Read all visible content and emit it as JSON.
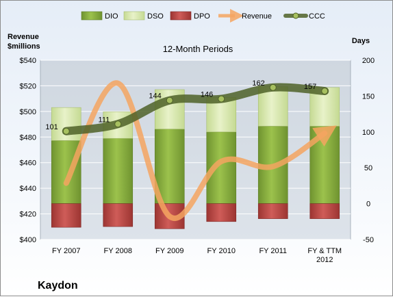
{
  "chart_data": {
    "type": "bar",
    "title": "12-Month Periods",
    "company": "Kaydon",
    "left_axis_title": "Revenue\n$millions",
    "right_axis_title": "Days",
    "categories": [
      "FY 2007",
      "FY 2008",
      "FY 2009",
      "FY 2010",
      "FY 2011",
      "FY & TTM\n2012"
    ],
    "left_axis": {
      "min": 400,
      "max": 540,
      "step": 20,
      "prefix": "$"
    },
    "right_axis": {
      "min": -50,
      "max": 200,
      "step": 50
    },
    "grid": true,
    "legend_position": "top",
    "series": [
      {
        "name": "DIO",
        "axis": "right",
        "kind": "stacked-bar",
        "color": "#8db53f",
        "values": [
          88,
          91,
          104,
          100,
          108,
          108
        ]
      },
      {
        "name": "DSO",
        "axis": "right",
        "kind": "stacked-bar",
        "color": "#dbe9b5",
        "values": [
          46,
          37,
          55,
          48,
          55,
          54
        ]
      },
      {
        "name": "DPO",
        "axis": "right",
        "kind": "negative-bar",
        "color": "#c0504d",
        "values": [
          -33,
          -32,
          -35,
          -25,
          -21,
          -21
        ]
      },
      {
        "name": "Revenue",
        "axis": "left",
        "kind": "smooth-line-arrow",
        "color": "#f4a460",
        "values": [
          444,
          522,
          418,
          461,
          457,
          483
        ]
      },
      {
        "name": "CCC",
        "axis": "right",
        "kind": "smooth-line-markers",
        "color": "#4f6228",
        "values": [
          101,
          111,
          144,
          146,
          162,
          157
        ]
      }
    ],
    "data_labels": [
      "101",
      "111",
      "144",
      "146",
      "162",
      "157"
    ]
  }
}
